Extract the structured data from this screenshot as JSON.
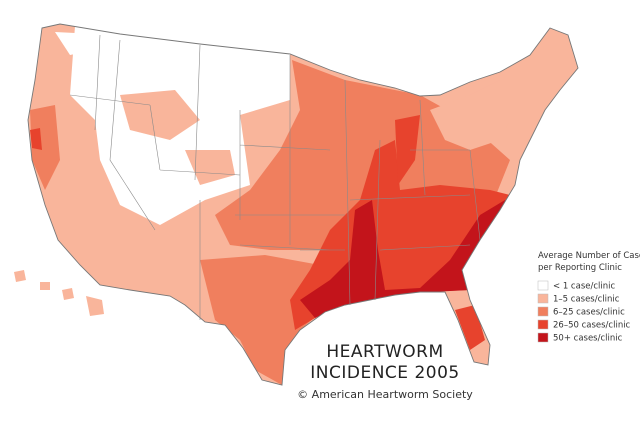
{
  "map": {
    "title_lines": [
      "HEARTWORM",
      "INCIDENCE 2005"
    ],
    "credit": "© American Heartworm Society",
    "legend": {
      "title_lines": [
        "Average Number of Cases",
        "per Reporting Clinic"
      ],
      "entries": [
        {
          "label": "< 1 case/clinic",
          "color": "#ffffff"
        },
        {
          "label": "1–5 cases/clinic",
          "color": "#f9b59b"
        },
        {
          "label": "6–25 cases/clinic",
          "color": "#f07f5e"
        },
        {
          "label": "26–50 cases/clinic",
          "color": "#e7432d"
        },
        {
          "label": "50+ cases/clinic",
          "color": "#c3141b"
        }
      ]
    }
  }
}
